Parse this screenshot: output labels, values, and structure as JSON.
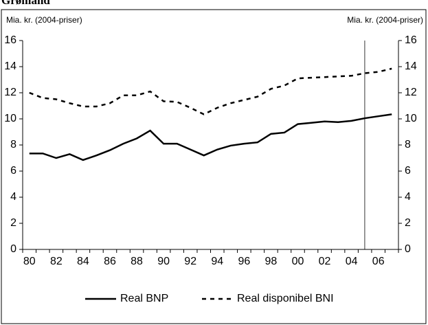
{
  "chart_data": {
    "type": "line",
    "title": "Grønland",
    "ylabel": "Mia. kr. (2004-priser)",
    "y2label": "Mia. kr. (2004-priser)",
    "categories": [
      "80",
      null,
      "82",
      null,
      "84",
      null,
      "86",
      null,
      "88",
      null,
      "90",
      null,
      "92",
      null,
      "94",
      null,
      "96",
      null,
      "98",
      null,
      "00",
      null,
      "02",
      null,
      "04",
      null,
      "06",
      null
    ],
    "series": [
      {
        "name": "Real BNP",
        "color": "#000000",
        "dash": "solid",
        "values": [
          7.35,
          7.35,
          7.0,
          7.3,
          6.85,
          7.2,
          7.6,
          8.1,
          8.5,
          9.1,
          8.1,
          8.1,
          7.65,
          7.2,
          7.65,
          7.95,
          8.1,
          8.2,
          8.85,
          8.95,
          9.6,
          9.7,
          9.8,
          9.75,
          9.85,
          10.05,
          10.2,
          10.35
        ]
      },
      {
        "name": "Real disponibel BNI",
        "color": "#000000",
        "dash": "dashed",
        "values": [
          12.0,
          11.6,
          11.5,
          11.2,
          10.95,
          10.95,
          11.2,
          11.8,
          11.8,
          12.1,
          11.35,
          11.3,
          10.85,
          10.35,
          10.85,
          11.2,
          11.45,
          11.7,
          12.3,
          12.55,
          13.1,
          13.15,
          13.2,
          13.25,
          13.3,
          13.5,
          13.6,
          13.85
        ]
      }
    ],
    "ylim": [
      0,
      16
    ],
    "yticks": [
      0,
      2,
      4,
      6,
      8,
      10,
      12,
      14,
      16
    ],
    "y2lim": [
      0,
      16
    ],
    "y2ticks": [
      0,
      2,
      4,
      6,
      8,
      10,
      12,
      14,
      16
    ],
    "legend": "bottom"
  }
}
